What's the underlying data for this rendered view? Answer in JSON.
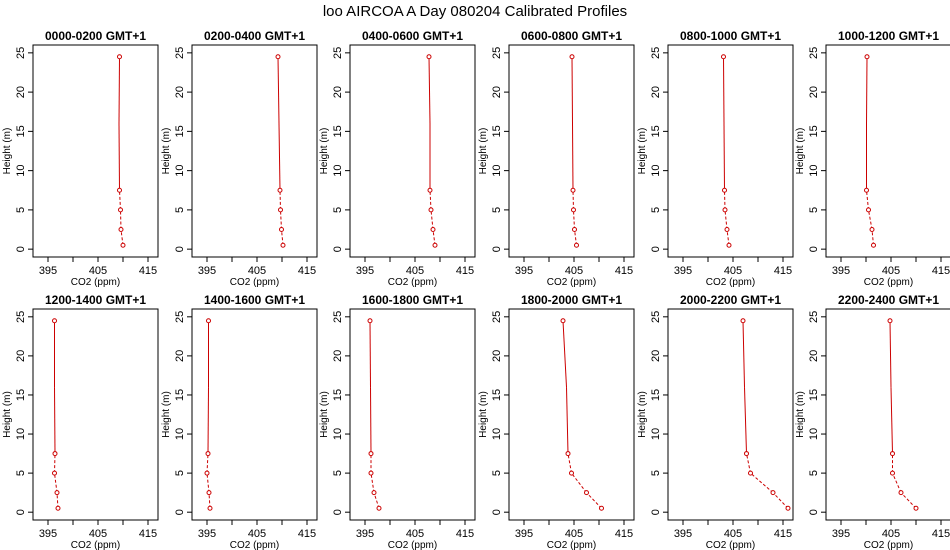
{
  "figure": {
    "title": "loo AIRCOA A  Day 080204  Calibrated Profiles"
  },
  "colors": {
    "line": "#cc0000",
    "marker": "#cc0000",
    "axis": "#000000"
  },
  "chart_data": [
    {
      "type": "line",
      "title": "0000-0200 GMT+1",
      "xlabel": "CO2 (ppm)",
      "ylabel": "Height (m)",
      "xlim": [
        392,
        417
      ],
      "ylim": [
        -1,
        26
      ],
      "xticks": [
        395,
        405,
        415
      ],
      "yticks": [
        0,
        5,
        10,
        15,
        20,
        25
      ],
      "legend": "none",
      "grid": false,
      "series": [
        {
          "x": [
            410.0,
            409.6,
            409.5,
            409.3,
            409.2,
            409.3
          ],
          "y": [
            0.5,
            2.5,
            5.0,
            7.5,
            16.0,
            24.5
          ]
        }
      ]
    },
    {
      "type": "line",
      "title": "0200-0400 GMT+1",
      "xlabel": "CO2 (ppm)",
      "ylabel": "Height (m)",
      "xlim": [
        392,
        417
      ],
      "ylim": [
        -1,
        26
      ],
      "xticks": [
        395,
        405,
        415
      ],
      "yticks": [
        0,
        5,
        10,
        15,
        20,
        25
      ],
      "legend": "none",
      "grid": false,
      "series": [
        {
          "x": [
            410.2,
            409.9,
            409.7,
            409.6,
            409.4,
            409.2
          ],
          "y": [
            0.5,
            2.5,
            5.0,
            7.5,
            16.0,
            24.5
          ]
        }
      ]
    },
    {
      "type": "line",
      "title": "0400-0600 GMT+1",
      "xlabel": "CO2 (ppm)",
      "ylabel": "Height (m)",
      "xlim": [
        392,
        417
      ],
      "ylim": [
        -1,
        26
      ],
      "xticks": [
        395,
        405,
        415
      ],
      "yticks": [
        0,
        5,
        10,
        15,
        20,
        25
      ],
      "legend": "none",
      "grid": false,
      "series": [
        {
          "x": [
            409.0,
            408.6,
            408.2,
            408.0,
            408.0,
            407.8
          ],
          "y": [
            0.5,
            2.5,
            5.0,
            7.5,
            16.0,
            24.5
          ]
        }
      ]
    },
    {
      "type": "line",
      "title": "0600-0800 GMT+1",
      "xlabel": "CO2 (ppm)",
      "ylabel": "Height (m)",
      "xlim": [
        392,
        417
      ],
      "ylim": [
        -1,
        26
      ],
      "xticks": [
        395,
        405,
        415
      ],
      "yticks": [
        0,
        5,
        10,
        15,
        20,
        25
      ],
      "legend": "none",
      "grid": false,
      "series": [
        {
          "x": [
            405.5,
            405.1,
            404.9,
            404.8,
            404.7,
            404.6
          ],
          "y": [
            0.5,
            2.5,
            5.0,
            7.5,
            16.0,
            24.5
          ]
        }
      ]
    },
    {
      "type": "line",
      "title": "0800-1000 GMT+1",
      "xlabel": "CO2 (ppm)",
      "ylabel": "Height (m)",
      "xlim": [
        392,
        417
      ],
      "ylim": [
        -1,
        26
      ],
      "xticks": [
        395,
        405,
        415
      ],
      "yticks": [
        0,
        5,
        10,
        15,
        20,
        25
      ],
      "legend": "none",
      "grid": false,
      "series": [
        {
          "x": [
            404.2,
            403.8,
            403.4,
            403.3,
            403.2,
            403.1
          ],
          "y": [
            0.5,
            2.5,
            5.0,
            7.5,
            16.0,
            24.5
          ]
        }
      ]
    },
    {
      "type": "line",
      "title": "1000-1200 GMT+1",
      "xlabel": "CO2 (ppm)",
      "ylabel": "Height (m)",
      "xlim": [
        392,
        417
      ],
      "ylim": [
        -1,
        26
      ],
      "xticks": [
        395,
        405,
        415
      ],
      "yticks": [
        0,
        5,
        10,
        15,
        20,
        25
      ],
      "legend": "none",
      "grid": false,
      "series": [
        {
          "x": [
            401.5,
            401.2,
            400.5,
            400.1,
            400.1,
            400.2
          ],
          "y": [
            0.5,
            2.5,
            5.0,
            7.5,
            16.0,
            24.5
          ]
        }
      ]
    },
    {
      "type": "line",
      "title": "1200-1400 GMT+1",
      "xlabel": "CO2 (ppm)",
      "ylabel": "Height (m)",
      "xlim": [
        392,
        417
      ],
      "ylim": [
        -1,
        26
      ],
      "xticks": [
        395,
        405,
        415
      ],
      "yticks": [
        0,
        5,
        10,
        15,
        20,
        25
      ],
      "legend": "none",
      "grid": false,
      "series": [
        {
          "x": [
            397.0,
            396.8,
            396.3,
            396.4,
            396.3,
            396.3
          ],
          "y": [
            0.5,
            2.5,
            5.0,
            7.5,
            16.0,
            24.5
          ]
        }
      ]
    },
    {
      "type": "line",
      "title": "1400-1600 GMT+1",
      "xlabel": "CO2 (ppm)",
      "ylabel": "Height (m)",
      "xlim": [
        392,
        417
      ],
      "ylim": [
        -1,
        26
      ],
      "xticks": [
        395,
        405,
        415
      ],
      "yticks": [
        0,
        5,
        10,
        15,
        20,
        25
      ],
      "legend": "none",
      "grid": false,
      "series": [
        {
          "x": [
            395.6,
            395.4,
            395.0,
            395.2,
            395.3,
            395.3
          ],
          "y": [
            0.5,
            2.5,
            5.0,
            7.5,
            16.0,
            24.5
          ]
        }
      ]
    },
    {
      "type": "line",
      "title": "1600-1800 GMT+1",
      "xlabel": "CO2 (ppm)",
      "ylabel": "Height (m)",
      "xlim": [
        392,
        417
      ],
      "ylim": [
        -1,
        26
      ],
      "xticks": [
        395,
        405,
        415
      ],
      "yticks": [
        0,
        5,
        10,
        15,
        20,
        25
      ],
      "legend": "none",
      "grid": false,
      "series": [
        {
          "x": [
            397.8,
            396.8,
            396.2,
            396.2,
            396.1,
            396.0
          ],
          "y": [
            0.5,
            2.5,
            5.0,
            7.5,
            16.0,
            24.5
          ]
        }
      ]
    },
    {
      "type": "line",
      "title": "1800-2000 GMT+1",
      "xlabel": "CO2 (ppm)",
      "ylabel": "Height (m)",
      "xlim": [
        392,
        417
      ],
      "ylim": [
        -1,
        26
      ],
      "xticks": [
        395,
        405,
        415
      ],
      "yticks": [
        0,
        5,
        10,
        15,
        20,
        25
      ],
      "legend": "none",
      "grid": false,
      "series": [
        {
          "x": [
            410.5,
            407.5,
            404.5,
            403.8,
            403.5,
            402.8
          ],
          "y": [
            0.5,
            2.5,
            5.0,
            7.5,
            16.0,
            24.5
          ]
        }
      ]
    },
    {
      "type": "line",
      "title": "2000-2200 GMT+1",
      "xlabel": "CO2 (ppm)",
      "ylabel": "Height (m)",
      "xlim": [
        392,
        417
      ],
      "ylim": [
        -1,
        26
      ],
      "xticks": [
        395,
        405,
        415
      ],
      "yticks": [
        0,
        5,
        10,
        15,
        20,
        25
      ],
      "legend": "none",
      "grid": false,
      "series": [
        {
          "x": [
            416.0,
            413.0,
            408.5,
            407.7,
            407.3,
            407.0
          ],
          "y": [
            0.5,
            2.5,
            5.0,
            7.5,
            16.0,
            24.5
          ]
        }
      ]
    },
    {
      "type": "line",
      "title": "2200-2400 GMT+1",
      "xlabel": "CO2 (ppm)",
      "ylabel": "Height (m)",
      "xlim": [
        392,
        417
      ],
      "ylim": [
        -1,
        26
      ],
      "xticks": [
        395,
        405,
        415
      ],
      "yticks": [
        0,
        5,
        10,
        15,
        20,
        25
      ],
      "legend": "none",
      "grid": false,
      "series": [
        {
          "x": [
            410.0,
            407.0,
            405.3,
            405.3,
            405.0,
            404.8
          ],
          "y": [
            0.5,
            2.5,
            5.0,
            7.5,
            16.0,
            24.5
          ]
        }
      ]
    }
  ]
}
